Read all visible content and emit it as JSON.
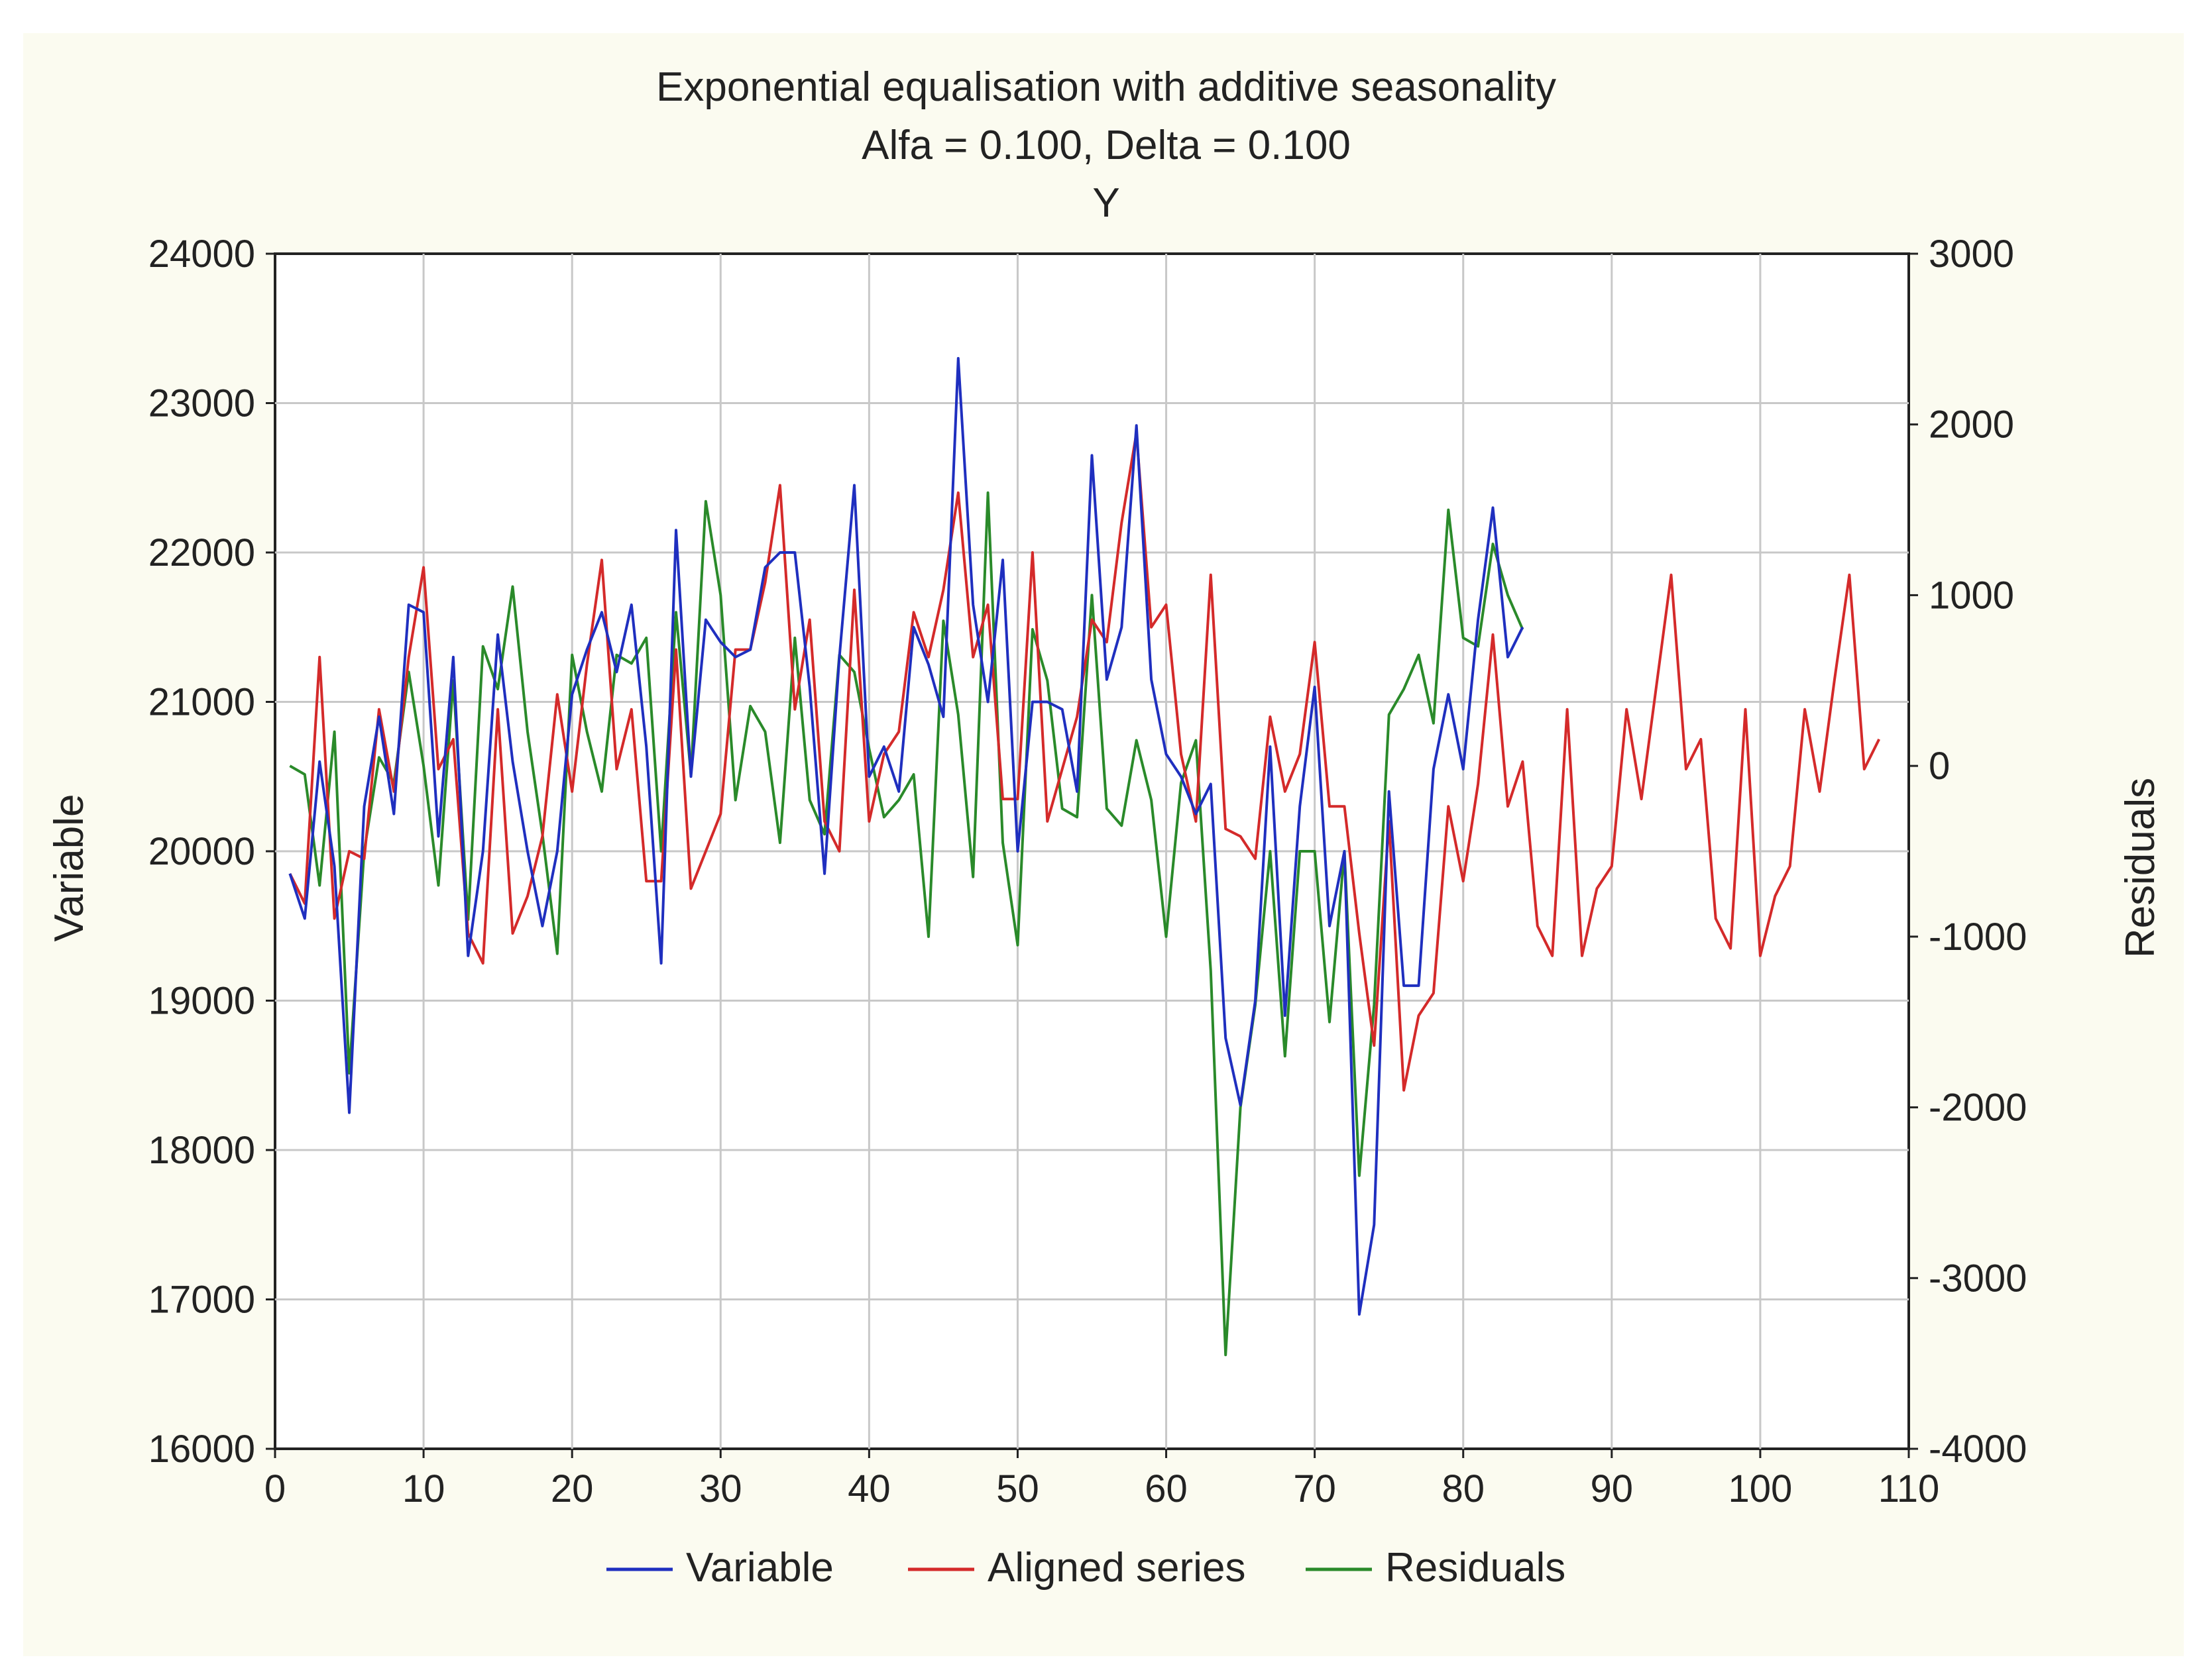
{
  "chart_data": {
    "type": "line",
    "title": "Exponential equalisation with additive seasonality",
    "subtitle": "Alfa = 0.100, Delta = 0.100",
    "subtitle2": "Y",
    "xlabel": "",
    "ylabel": "Variable",
    "y2label": "Residuals",
    "xlim": [
      0,
      110
    ],
    "ylim": [
      16000,
      24000
    ],
    "y2lim": [
      -4000,
      3000
    ],
    "x_ticks": [
      0,
      10,
      20,
      30,
      40,
      50,
      60,
      70,
      80,
      90,
      100,
      110
    ],
    "x_tick_labels": [
      "0",
      "10",
      "20",
      "30",
      "40",
      "50",
      "60",
      "70",
      "80",
      "90",
      "100",
      "110"
    ],
    "y_ticks": [
      16000,
      17000,
      18000,
      19000,
      20000,
      21000,
      22000,
      23000,
      24000
    ],
    "y_tick_labels": [
      "16000",
      "17000",
      "18000",
      "19000",
      "20000",
      "21000",
      "22000",
      "23000",
      "24000"
    ],
    "y2_ticks": [
      -4000,
      -3000,
      -2000,
      -1000,
      0,
      1000,
      2000,
      3000
    ],
    "y2_tick_labels": [
      "-4000",
      "-3000",
      "-2000",
      "-1000",
      "0",
      "1000",
      "2000",
      "3000"
    ],
    "grid": true,
    "legend_position": "bottom",
    "series": [
      {
        "name": "Variable",
        "axis": "left",
        "color": "#1f2fbf",
        "x": [
          1,
          2,
          3,
          4,
          5,
          6,
          7,
          8,
          9,
          10,
          11,
          12,
          13,
          14,
          15,
          16,
          17,
          18,
          19,
          20,
          21,
          22,
          23,
          24,
          25,
          26,
          27,
          28,
          29,
          30,
          31,
          32,
          33,
          34,
          35,
          36,
          37,
          38,
          39,
          40,
          41,
          42,
          43,
          44,
          45,
          46,
          47,
          48,
          49,
          50,
          51,
          52,
          53,
          54,
          55,
          56,
          57,
          58,
          59,
          60,
          61,
          62,
          63,
          64,
          65,
          66,
          67,
          68,
          69,
          70,
          71,
          72,
          73,
          74,
          75,
          76,
          77,
          78,
          79,
          80,
          81,
          82,
          83,
          84
        ],
        "values": [
          19850,
          19550,
          20600,
          19900,
          18250,
          20300,
          20900,
          20250,
          21650,
          21600,
          20100,
          21300,
          19300,
          20000,
          21450,
          20600,
          20000,
          19500,
          20000,
          21050,
          21350,
          21600,
          21200,
          21650,
          20700,
          19250,
          22150,
          20500,
          21550,
          21400,
          21300,
          21350,
          21900,
          22000,
          22000,
          21100,
          19850,
          21300,
          22450,
          20500,
          20700,
          20400,
          21500,
          21250,
          20900,
          23300,
          21650,
          21000,
          21950,
          20000,
          21000,
          21000,
          20950,
          20400,
          22650,
          21150,
          21500,
          22850,
          21150,
          20650,
          20500,
          20250,
          20450,
          18750,
          18300,
          19000,
          20700,
          18900,
          20300,
          21100,
          19500,
          20000,
          16900,
          17500,
          20400,
          19100,
          19100,
          20550,
          21050,
          20550,
          21550,
          22300,
          21300,
          21500
        ]
      },
      {
        "name": "Aligned series",
        "axis": "left",
        "color": "#d42a2a",
        "x": [
          1,
          2,
          3,
          4,
          5,
          6,
          7,
          8,
          9,
          10,
          11,
          12,
          13,
          14,
          15,
          16,
          17,
          18,
          19,
          20,
          21,
          22,
          23,
          24,
          25,
          26,
          27,
          28,
          29,
          30,
          31,
          32,
          33,
          34,
          35,
          36,
          37,
          38,
          39,
          40,
          41,
          42,
          43,
          44,
          45,
          46,
          47,
          48,
          49,
          50,
          51,
          52,
          53,
          54,
          55,
          56,
          57,
          58,
          59,
          60,
          61,
          62,
          63,
          64,
          65,
          66,
          67,
          68,
          69,
          70,
          71,
          72,
          73,
          74,
          75,
          76,
          77,
          78,
          79,
          80,
          81,
          82,
          83,
          84,
          85,
          86,
          87,
          88,
          89,
          90,
          91,
          92,
          93,
          94,
          95,
          96,
          97,
          98,
          99,
          100,
          101,
          102,
          103,
          104,
          105,
          106,
          107,
          108
        ],
        "values": [
          19850,
          19650,
          21300,
          19550,
          20000,
          19950,
          20950,
          20400,
          21300,
          21900,
          20550,
          20750,
          19450,
          19250,
          20950,
          19450,
          19700,
          20100,
          21050,
          20400,
          21250,
          21950,
          20550,
          20950,
          19800,
          19800,
          21350,
          19750,
          20000,
          20250,
          21350,
          21350,
          21800,
          22450,
          20950,
          21550,
          20200,
          20000,
          21750,
          20200,
          20650,
          20800,
          21600,
          21300,
          21750,
          22400,
          21300,
          21650,
          20350,
          20350,
          22000,
          20200,
          20550,
          20900,
          21550,
          21400,
          22200,
          22800,
          21500,
          21650,
          20650,
          20200,
          21850,
          20150,
          20100,
          19950,
          20900,
          20400,
          20650,
          21400,
          20300,
          20300,
          19450,
          18700,
          20200,
          18400,
          18900,
          19050,
          20300,
          19800,
          20450,
          21450,
          20300,
          20600,
          19500,
          19300,
          20950,
          19300,
          19750,
          19900,
          20950,
          20350,
          21100,
          21850,
          20550,
          20750,
          19550,
          19350,
          20950,
          19300,
          19700,
          19900,
          20950,
          20400,
          21150,
          21850,
          20550,
          20750
        ]
      },
      {
        "name": "Residuals",
        "axis": "right",
        "color": "#2a8a2a",
        "x": [
          1,
          2,
          3,
          4,
          5,
          6,
          7,
          8,
          9,
          10,
          11,
          12,
          13,
          14,
          15,
          16,
          17,
          18,
          19,
          20,
          21,
          22,
          23,
          24,
          25,
          26,
          27,
          28,
          29,
          30,
          31,
          32,
          33,
          34,
          35,
          36,
          37,
          38,
          39,
          40,
          41,
          42,
          43,
          44,
          45,
          46,
          47,
          48,
          49,
          50,
          51,
          52,
          53,
          54,
          55,
          56,
          57,
          58,
          59,
          60,
          61,
          62,
          63,
          64,
          65,
          66,
          67,
          68,
          69,
          70,
          71,
          72,
          73,
          74,
          75,
          76,
          77,
          78,
          79,
          80,
          81,
          82,
          83,
          84
        ],
        "values": [
          0,
          -50,
          -700,
          200,
          -1800,
          -500,
          50,
          -100,
          550,
          0,
          -700,
          500,
          -900,
          700,
          450,
          1050,
          200,
          -400,
          -1100,
          650,
          200,
          -150,
          650,
          600,
          750,
          -500,
          900,
          -50,
          1550,
          1000,
          -200,
          350,
          200,
          -450,
          750,
          -200,
          -400,
          650,
          550,
          100,
          -300,
          -200,
          -50,
          -1000,
          850,
          300,
          -650,
          1600,
          -450,
          -1050,
          800,
          500,
          -250,
          -300,
          1000,
          -250,
          -350,
          150,
          -200,
          -1000,
          -100,
          150,
          -1200,
          -3450,
          -2000,
          -1400,
          -500,
          -1700,
          -500,
          -500,
          -1500,
          -500,
          -2400,
          -1400,
          300,
          450,
          650,
          250,
          1500,
          750,
          700,
          1300,
          1000,
          800
        ]
      }
    ]
  }
}
